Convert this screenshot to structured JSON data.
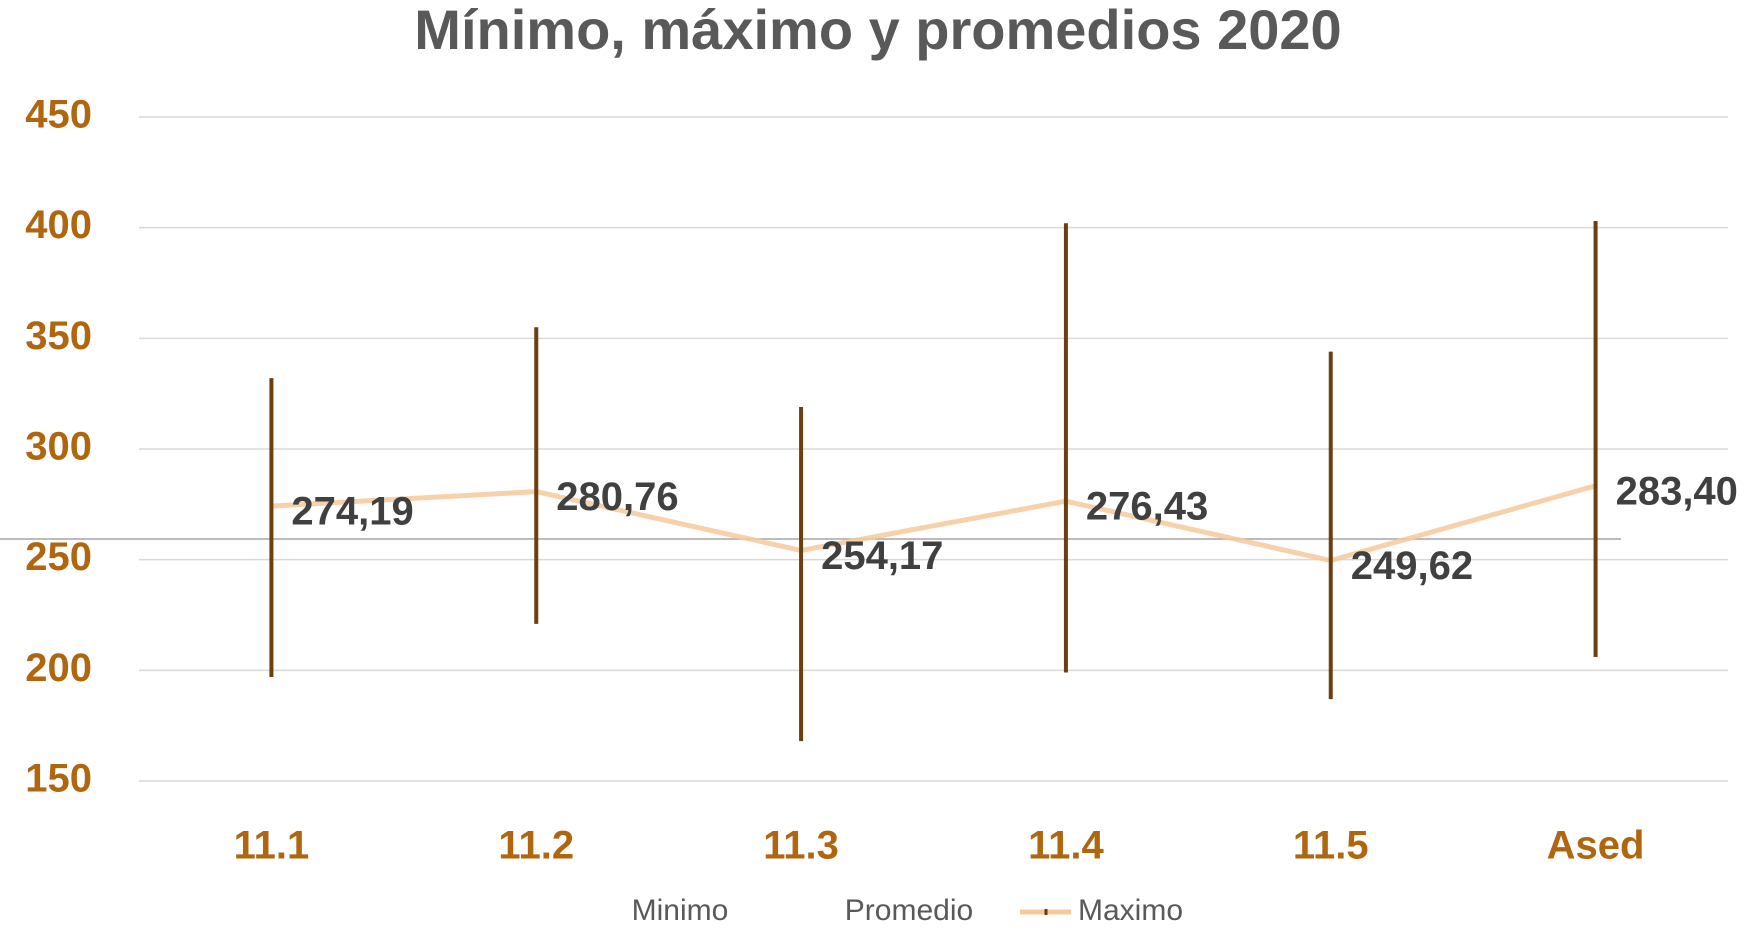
{
  "chart_data": {
    "type": "high-low",
    "title": "Mínimo, máximo y promedios 2020",
    "categories": [
      "11.1",
      "11.2",
      "11.3",
      "11.4",
      "11.5",
      "Ased"
    ],
    "series": [
      {
        "name": "Minimo",
        "color": "#6b3f0f",
        "values": [
          197,
          221,
          168,
          199,
          187,
          206
        ]
      },
      {
        "name": "Promedio",
        "color": "#f5c99b",
        "values": [
          274.19,
          280.76,
          254.17,
          276.43,
          249.62,
          283.4
        ],
        "value_labels": [
          "274,19",
          "280,76",
          "254,17",
          "276,43",
          "249,62",
          "283,40"
        ]
      },
      {
        "name": "Maximo",
        "color": "#6b3f0f",
        "values": [
          332,
          355,
          319,
          402,
          344,
          403
        ]
      }
    ],
    "ylim": [
      150,
      450
    ],
    "yticks": [
      150,
      200,
      250,
      300,
      350,
      400,
      450
    ],
    "grid": true,
    "legend": "bottom"
  }
}
